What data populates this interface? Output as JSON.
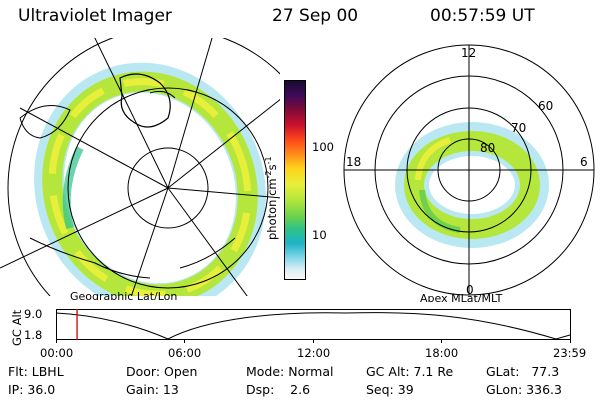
{
  "header": {
    "instrument": "Ultraviolet Imager",
    "date": "27 Sep 00",
    "time": "00:57:59 UT"
  },
  "colorbar": {
    "unit_label": "photon cm",
    "unit_superscript_1": "-2",
    "unit_s": "s",
    "unit_superscript_2": "-1",
    "tick_labels": [
      "100",
      "10"
    ]
  },
  "left_map": {
    "caption": "Geographic Lat/Lon"
  },
  "right_map": {
    "caption": "Apex MLat/MLT",
    "mlt_labels": [
      "12",
      "18",
      "6",
      "0"
    ],
    "lat_labels": [
      "60",
      "70",
      "80"
    ]
  },
  "altitude_plot": {
    "ylabel": "GC Alt",
    "y_ticks": [
      "9.0",
      "1.8"
    ],
    "x_ticks": [
      "00:00",
      "06:00",
      "12:00",
      "18:00",
      "23:59"
    ],
    "current_time_fraction": 0.04
  },
  "info": {
    "filter": "Flt: LBHL",
    "ip": "IP: 36.0",
    "door": "Door: Open",
    "gain": "Gain: 13",
    "mode": "Mode: Normal",
    "dsp": "Dsp:    2.6",
    "gc_alt": "GC Alt: 7.1 Re",
    "seq": "Seq: 39",
    "glat": "GLat:   77.3",
    "glon": "GLon: 336.3"
  }
}
